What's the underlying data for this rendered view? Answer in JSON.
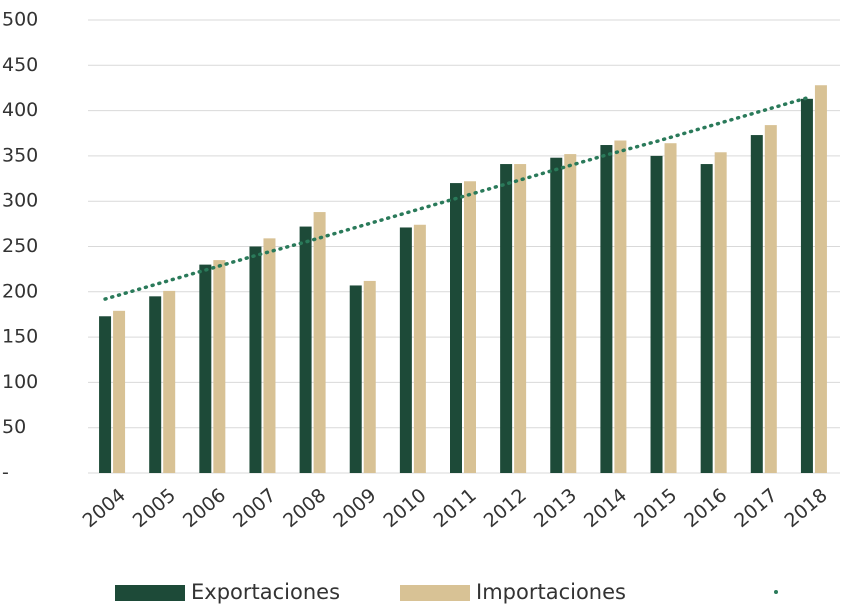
{
  "chart_data": {
    "type": "bar",
    "categories": [
      "2004",
      "2005",
      "2006",
      "2007",
      "2008",
      "2009",
      "2010",
      "2011",
      "2012",
      "2013",
      "2014",
      "2015",
      "2016",
      "2017",
      "2018"
    ],
    "series": [
      {
        "name": "Exportaciones",
        "color": "#1d4a38",
        "values": [
          173,
          195,
          230,
          250,
          272,
          207,
          271,
          320,
          341,
          348,
          362,
          350,
          341,
          373,
          413
        ]
      },
      {
        "name": "Importaciones",
        "color": "#d8c295",
        "values": [
          179,
          201,
          235,
          259,
          288,
          212,
          274,
          322,
          341,
          352,
          367,
          364,
          354,
          384,
          428
        ]
      }
    ],
    "trendline": {
      "color": "#2a7a5a",
      "values": [
        192,
        208,
        224,
        240,
        255,
        271,
        287,
        303,
        319,
        335,
        351,
        366,
        382,
        398,
        414
      ]
    },
    "ylim": [
      0,
      500
    ],
    "yticks": [
      {
        "value": 0,
        "label": "-"
      },
      50,
      100,
      150,
      200,
      250,
      300,
      350,
      400,
      450,
      500
    ],
    "grid": true
  }
}
